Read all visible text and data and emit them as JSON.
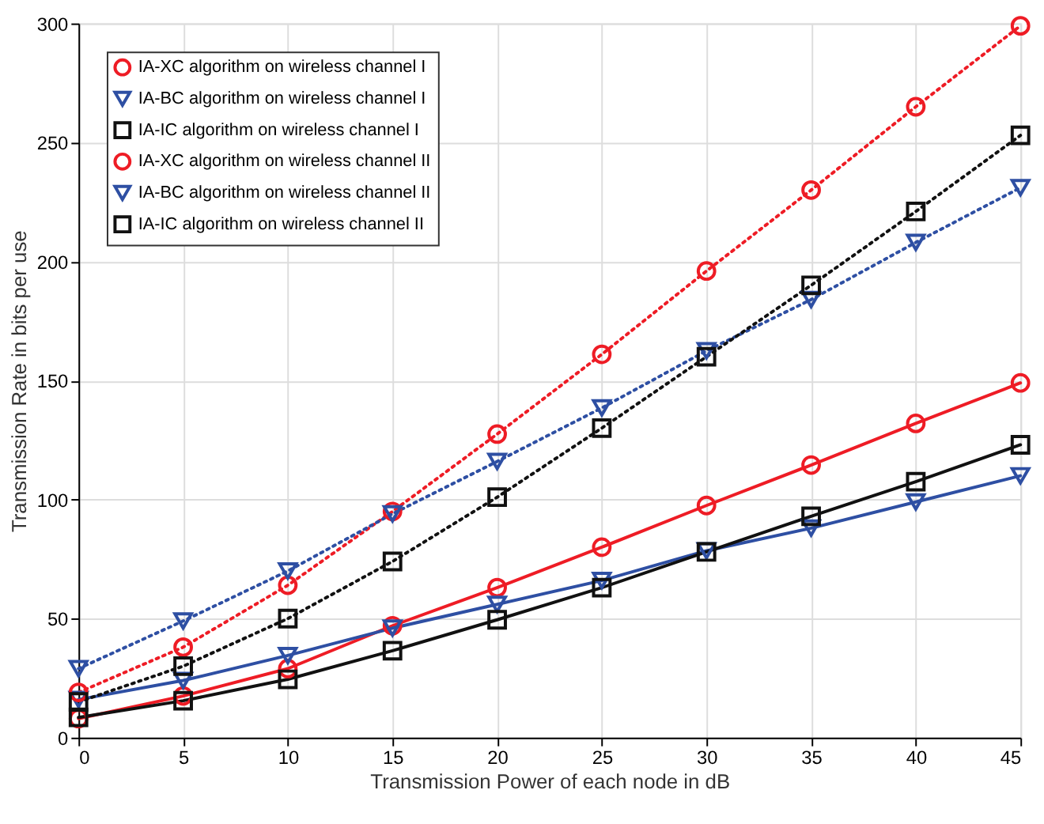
{
  "chart_data": {
    "type": "line",
    "xlabel": "Transmission Power of each node in dB",
    "ylabel": "Transmission Rate in bits per use",
    "x": [
      0,
      5,
      10,
      15,
      20,
      25,
      30,
      35,
      40,
      45
    ],
    "xlim": [
      0,
      45
    ],
    "xticks": [
      0,
      5,
      10,
      15,
      20,
      25,
      30,
      35,
      40,
      45
    ],
    "ylim": [
      0,
      300
    ],
    "yticks": [
      0,
      50,
      100,
      150,
      200,
      250,
      300
    ],
    "grid": true,
    "legend": "top left",
    "series": [
      {
        "name": "IA-XC algorithm on wireless channel I",
        "color": "#ee1c25",
        "marker": "circle",
        "line_style": "solid",
        "values": [
          8,
          17.5,
          29,
          47,
          63,
          80,
          97.5,
          114.5,
          132,
          149
        ]
      },
      {
        "name": "IA-BC algorithm on wireless channel I",
        "color": "#2e4fa3",
        "marker": "triangle",
        "line_style": "solid",
        "values": [
          16,
          24,
          34.5,
          46,
          56,
          66,
          78.5,
          88,
          99,
          110
        ]
      },
      {
        "name": "IA-IC algorithm on wireless channel I",
        "color": "#111111",
        "marker": "square",
        "line_style": "solid",
        "values": [
          8.5,
          15.5,
          24.5,
          36.5,
          49.5,
          63,
          78,
          93,
          107.5,
          123
        ]
      },
      {
        "name": "IA-XC algorithm on wireless channel II",
        "color": "#ee1c25",
        "marker": "circle",
        "line_style": "dotted",
        "values": [
          19,
          38,
          64,
          95,
          127.5,
          161,
          196,
          230,
          265,
          299
        ]
      },
      {
        "name": "IA-BC algorithm on wireless channel II",
        "color": "#2e4fa3",
        "marker": "triangle",
        "line_style": "dotted",
        "values": [
          29,
          49,
          70,
          94,
          116,
          138.5,
          162.5,
          184,
          208,
          231
        ]
      },
      {
        "name": "IA-IC algorithm on wireless channel II",
        "color": "#111111",
        "marker": "square",
        "line_style": "dotted",
        "values": [
          15,
          30,
          50,
          74,
          101,
          130,
          160,
          190,
          221,
          253
        ]
      }
    ]
  }
}
